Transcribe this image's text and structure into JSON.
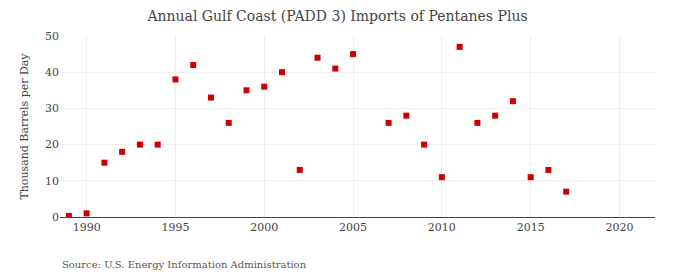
{
  "chart_data": {
    "type": "scatter",
    "title": "Annual Gulf Coast (PADD 3) Imports of Pentanes Plus",
    "y_label": "Thousand Barrels per Day",
    "annotations": [
      "Source: U.S. Energy Information Administration"
    ],
    "x": [
      1989,
      1990,
      1991,
      1992,
      1993,
      1994,
      1995,
      1996,
      1997,
      1998,
      1999,
      2000,
      2001,
      2002,
      2003,
      2004,
      2005,
      2007,
      2008,
      2009,
      2010,
      2011,
      2012,
      2013,
      2014,
      2015,
      2016,
      2017
    ],
    "values": [
      0.3,
      1.0,
      15.0,
      18.0,
      20.0,
      20.0,
      38.0,
      42.0,
      33.0,
      26.0,
      35.0,
      36.0,
      40.0,
      13.0,
      44.0,
      41.0,
      45.0,
      26.0,
      28.0,
      20.0,
      11.0,
      47.0,
      26.0,
      28.0,
      32.0,
      11.0,
      13.0,
      7.0
    ],
    "color": "#cc0000",
    "marker": "square",
    "xlim": [
      1988.5,
      2022
    ],
    "ylim": [
      0,
      50
    ],
    "xticks": [
      1990,
      1995,
      2000,
      2005,
      2010,
      2015,
      2020
    ],
    "yticks": [
      0,
      10,
      20,
      30,
      40,
      50
    ],
    "grid": true
  }
}
